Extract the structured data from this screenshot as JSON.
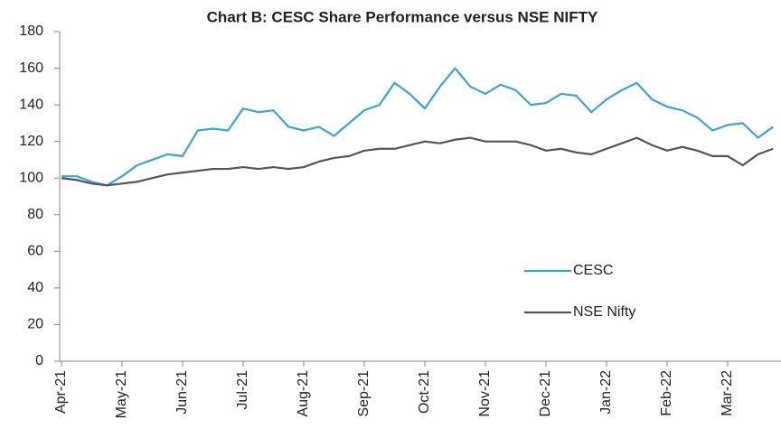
{
  "chart_data": {
    "type": "line",
    "title": "Chart B: CESC Share Performance versus NSE NIFTY",
    "categories": [
      "Apr-21",
      null,
      null,
      null,
      "May-21",
      null,
      null,
      null,
      "Jun-21",
      null,
      null,
      null,
      "Jul-21",
      null,
      null,
      null,
      "Aug-21",
      null,
      null,
      null,
      "Sep-21",
      null,
      null,
      null,
      "Oct-21",
      null,
      null,
      null,
      "Nov-21",
      null,
      null,
      null,
      "Dec-21",
      null,
      null,
      null,
      "Jan-22",
      null,
      null,
      null,
      "Feb-22",
      null,
      null,
      null,
      "Mar-22",
      null,
      null,
      null
    ],
    "series": [
      {
        "name": "CESC",
        "color": "#3aa6d8",
        "values": [
          101,
          101,
          98,
          96,
          101,
          107,
          110,
          113,
          112,
          126,
          127,
          126,
          138,
          136,
          137,
          128,
          126,
          128,
          123,
          130,
          137,
          140,
          152,
          146,
          138,
          150,
          160,
          150,
          146,
          151,
          148,
          140,
          141,
          146,
          145,
          136,
          143,
          148,
          152,
          143,
          139,
          137,
          133,
          126,
          129,
          130,
          122,
          128
        ]
      },
      {
        "name": "NSE Nifty",
        "color": "#555555",
        "values": [
          100,
          99,
          97,
          96,
          97,
          98,
          100,
          102,
          103,
          104,
          105,
          105,
          106,
          105,
          106,
          105,
          106,
          109,
          111,
          112,
          115,
          116,
          116,
          118,
          120,
          119,
          121,
          122,
          120,
          120,
          120,
          118,
          115,
          116,
          114,
          113,
          116,
          119,
          122,
          118,
          115,
          117,
          115,
          112,
          112,
          107,
          113,
          116
        ]
      }
    ],
    "ylim": [
      0,
      180
    ],
    "yticks": [
      0,
      20,
      40,
      60,
      80,
      100,
      120,
      140,
      160,
      180
    ],
    "legend": "lower right"
  }
}
